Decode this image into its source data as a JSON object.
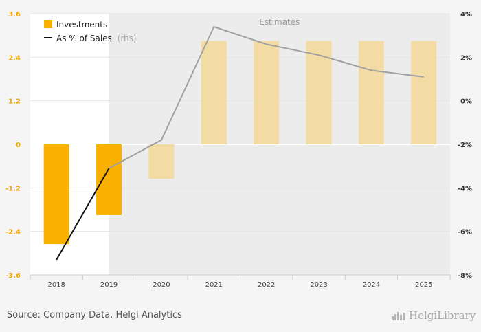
{
  "chart_data": {
    "type": "bar",
    "categories": [
      "2018",
      "2019",
      "2020",
      "2021",
      "2022",
      "2023",
      "2024",
      "2025"
    ],
    "estimates_from": "2020",
    "estimates_label": "Estimates",
    "series": [
      {
        "name": "Investments",
        "axis": "left",
        "type": "bar",
        "values": [
          -2.75,
          -1.95,
          -0.95,
          2.85,
          2.85,
          2.85,
          2.85,
          2.85
        ]
      },
      {
        "name": "As % of Sales",
        "name_suffix": "(rhs)",
        "axis": "right",
        "type": "line",
        "values": [
          -7.3,
          -3.1,
          -1.8,
          3.4,
          2.6,
          2.1,
          1.4,
          1.1
        ]
      }
    ],
    "left_axis": {
      "ylim": [
        -3.6,
        3.6
      ],
      "ticks": [
        "3.6",
        "2.4",
        "1.2",
        "0",
        "-1.2",
        "-2.4",
        "-3.6"
      ]
    },
    "right_axis": {
      "ylim": [
        -8,
        4
      ],
      "ticks": [
        "4%",
        "2%",
        "0%",
        "-2%",
        "-4%",
        "-6%",
        "-8%"
      ]
    },
    "colors": {
      "bar_actual": "#f9b000",
      "bar_estimate": "#f3dba4",
      "line_actual": "#111111",
      "line_estimate": "#a0a0a0",
      "estimate_band": "#ececec",
      "zero_line": "#ffffff"
    }
  },
  "footer": {
    "source": "Source: Company Data, Helgi Analytics",
    "logo": "HelgiLibrary"
  }
}
